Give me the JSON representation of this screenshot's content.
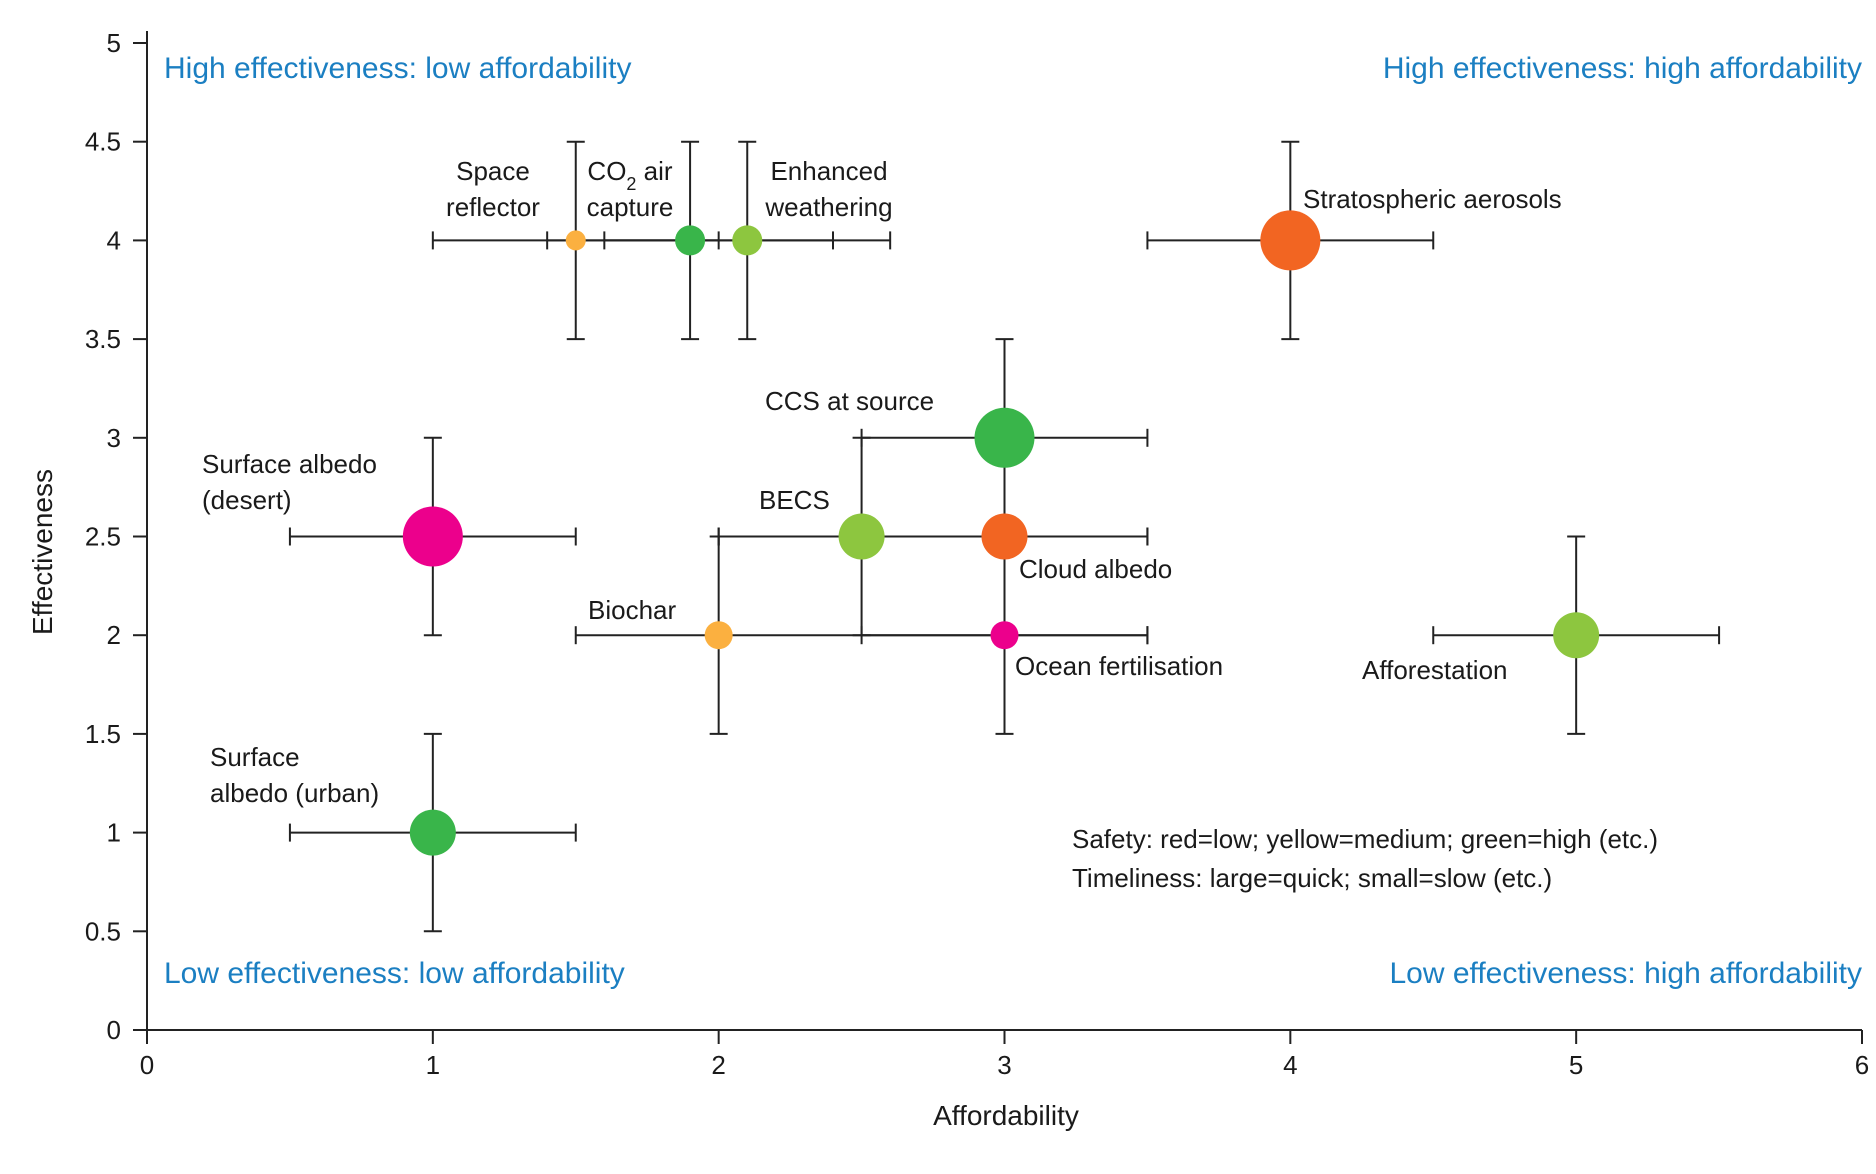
{
  "chart_data": {
    "type": "scatter",
    "xlabel": "Affordability",
    "ylabel": "Effectiveness",
    "xlim": [
      0,
      6
    ],
    "ylim": [
      0,
      5
    ],
    "xticks": [
      "0",
      "1",
      "2",
      "3",
      "4",
      "5",
      "6"
    ],
    "yticks": [
      "0",
      "0.5",
      "1",
      "1.5",
      "2",
      "2.5",
      "3",
      "3.5",
      "4",
      "4.5",
      "5"
    ],
    "grid": false,
    "quadrant_labels": {
      "top_left": "High effectiveness: low affordability",
      "top_right": "High effectiveness: high affordability",
      "bottom_left": "Low effectiveness: low affordability",
      "bottom_right": "Low effectiveness: high affordability"
    },
    "legend": [
      "Safety: red=low; yellow=medium; green=high (etc.)",
      "Timeliness: large=quick; small=slow (etc.)"
    ],
    "colors": {
      "red": "#f26522",
      "orange": "#fbb040",
      "green": "#39b54a",
      "lightgreen": "#8dc63f",
      "magenta": "#ec008c"
    },
    "points": [
      {
        "id": "space-reflector",
        "label_lines": [
          "Space",
          "reflector"
        ],
        "x": 1.5,
        "y": 4,
        "xerr": [
          1.0,
          2.0
        ],
        "yerr": [
          3.5,
          4.5
        ],
        "color": "#fbb040",
        "size": "small"
      },
      {
        "id": "co2-air-capture",
        "label_lines": [
          "CO",
          "capture"
        ],
        "label_sub": "2",
        "label_suffix": " air",
        "x": 1.9,
        "y": 4,
        "xerr": [
          1.6,
          2.4
        ],
        "yerr": [
          3.5,
          4.5
        ],
        "color": "#39b54a",
        "size": "medium"
      },
      {
        "id": "enhanced-weathering",
        "label_lines": [
          "Enhanced",
          "weathering"
        ],
        "x": 2.1,
        "y": 4,
        "xerr": [
          1.4,
          2.6
        ],
        "yerr": [
          3.5,
          4.5
        ],
        "color": "#8dc63f",
        "size": "medium"
      },
      {
        "id": "stratospheric-aerosols",
        "label_lines": [
          "Stratospheric aerosols"
        ],
        "x": 4,
        "y": 4,
        "xerr": [
          3.5,
          4.5
        ],
        "yerr": [
          3.5,
          4.5
        ],
        "color": "#f26522",
        "size": "xlarge"
      },
      {
        "id": "ccs-at-source",
        "label_lines": [
          "CCS at source"
        ],
        "x": 3,
        "y": 3,
        "xerr": [
          2.5,
          3.5
        ],
        "yerr": [
          2.5,
          3.5
        ],
        "color": "#39b54a",
        "size": "xlarge"
      },
      {
        "id": "surface-albedo-desert",
        "label_lines": [
          "Surface albedo",
          "(desert)"
        ],
        "x": 1,
        "y": 2.5,
        "xerr": [
          0.5,
          1.5
        ],
        "yerr": [
          2.0,
          3.0
        ],
        "color": "#ec008c",
        "size": "xlarge"
      },
      {
        "id": "becs",
        "label_lines": [
          "BECS"
        ],
        "x": 2.5,
        "y": 2.5,
        "xerr": [
          2.0,
          3.5
        ],
        "yerr": [
          2.0,
          3.0
        ],
        "color": "#8dc63f",
        "size": "large"
      },
      {
        "id": "cloud-albedo",
        "label_lines": [
          "Cloud albedo"
        ],
        "x": 3,
        "y": 2.5,
        "xerr": [
          2.0,
          3.5
        ],
        "yerr": [
          2.0,
          3.0
        ],
        "color": "#f26522",
        "size": "large"
      },
      {
        "id": "biochar",
        "label_lines": [
          "Biochar"
        ],
        "x": 2,
        "y": 2,
        "xerr": [
          1.5,
          3.5
        ],
        "yerr": [
          1.5,
          2.5
        ],
        "color": "#fbb040",
        "size": "medium-small"
      },
      {
        "id": "ocean-fertilisation",
        "label_lines": [
          "Ocean fertilisation"
        ],
        "x": 3,
        "y": 2,
        "xerr": [
          2.5,
          3.5
        ],
        "yerr": [
          1.5,
          2.5
        ],
        "color": "#ec008c",
        "size": "medium-small"
      },
      {
        "id": "afforestation",
        "label_lines": [
          "Afforestation"
        ],
        "x": 5,
        "y": 2,
        "xerr": [
          4.5,
          5.5
        ],
        "yerr": [
          1.5,
          2.5
        ],
        "color": "#8dc63f",
        "size": "large"
      },
      {
        "id": "surface-albedo-urban",
        "label_lines": [
          "Surface",
          "albedo (urban)"
        ],
        "x": 1,
        "y": 1,
        "xerr": [
          0.5,
          1.5
        ],
        "yerr": [
          0.5,
          1.5
        ],
        "color": "#39b54a",
        "size": "large"
      }
    ]
  }
}
